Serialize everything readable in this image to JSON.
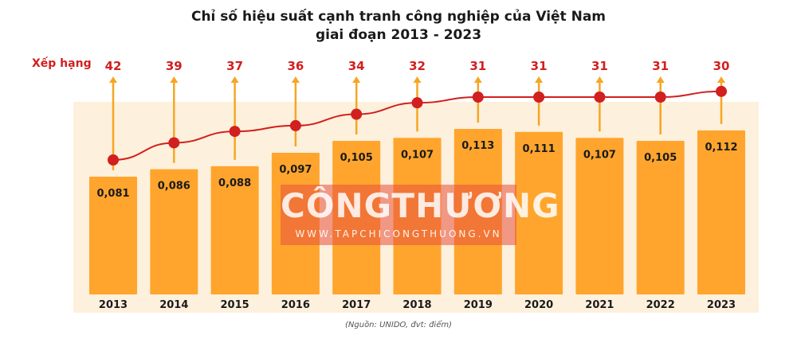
{
  "title_line1": "Chỉ số hiệu suất cạnh tranh công nghiệp của Việt Nam",
  "title_line2": "giai đoạn 2013 - 2023",
  "rank_label": "Xếp hạng",
  "source": "(Nguồn: UNIDO, đvt: điểm)",
  "watermark": {
    "main": "CÔNGTHƯƠNG",
    "sub": "WWW.TAPCHICONGTHUONG.VN"
  },
  "colors": {
    "bar": "#ffa52d",
    "panel": "#fdf0dc",
    "line": "#d21f1f",
    "arrow": "#f5a623"
  },
  "chart_data": {
    "type": "bar",
    "categories": [
      "2013",
      "2014",
      "2015",
      "2016",
      "2017",
      "2018",
      "2019",
      "2020",
      "2021",
      "2022",
      "2023"
    ],
    "values": [
      0.081,
      0.086,
      0.088,
      0.097,
      0.105,
      0.107,
      0.113,
      0.111,
      0.107,
      0.105,
      0.112
    ],
    "value_labels": [
      "0,081",
      "0,086",
      "0,088",
      "0,097",
      "0,105",
      "0,107",
      "0,113",
      "0,111",
      "0,107",
      "0,105",
      "0,112"
    ],
    "rank_values": [
      42,
      39,
      37,
      36,
      34,
      32,
      31,
      31,
      31,
      31,
      30
    ],
    "title": "Chỉ số hiệu suất cạnh tranh công nghiệp của Việt Nam giai đoạn 2013 - 2023",
    "grid": false,
    "legend": "none"
  }
}
